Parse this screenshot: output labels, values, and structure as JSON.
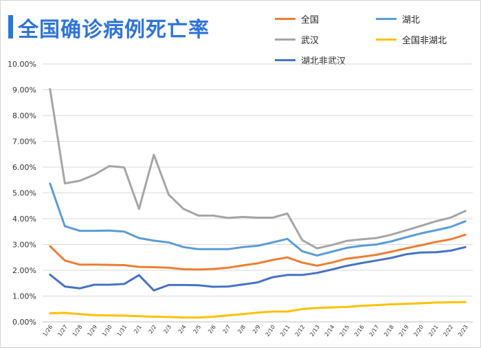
{
  "title": "全国确诊病例死亡率",
  "colors": {
    "accent": "#2e74d9"
  },
  "chart_data": {
    "type": "line",
    "title": "全国确诊病例死亡率",
    "xlabel": "",
    "ylabel": "",
    "ylim": [
      0,
      10
    ],
    "yticks": [
      "0.00%",
      "1.00%",
      "2.00%",
      "3.00%",
      "4.00%",
      "5.00%",
      "6.00%",
      "7.00%",
      "8.00%",
      "9.00%",
      "10.00%"
    ],
    "grid": true,
    "legend_position": "top-right",
    "categories": [
      "1/26",
      "1/27",
      "1/28",
      "1/29",
      "1/30",
      "1/31",
      "2/1",
      "2/2",
      "2/3",
      "2/4",
      "2/5",
      "2/6",
      "2/7",
      "2/8",
      "2/9",
      "2/10",
      "2/11",
      "2/12",
      "2/13",
      "2/14",
      "2/15",
      "2/16",
      "2/17",
      "2/18",
      "2/19",
      "2/20",
      "2/21",
      "2/22",
      "2/23"
    ],
    "series": [
      {
        "name": "全国",
        "color": "#ed7d31",
        "values": [
          2.93,
          2.38,
          2.22,
          2.22,
          2.21,
          2.2,
          2.13,
          2.12,
          2.1,
          2.04,
          2.03,
          2.05,
          2.1,
          2.19,
          2.27,
          2.4,
          2.5,
          2.3,
          2.18,
          2.3,
          2.45,
          2.52,
          2.6,
          2.72,
          2.85,
          2.97,
          3.1,
          3.2,
          3.38
        ]
      },
      {
        "name": "湖北",
        "color": "#5b9bd5",
        "values": [
          5.36,
          3.71,
          3.53,
          3.53,
          3.54,
          3.5,
          3.25,
          3.15,
          3.08,
          2.9,
          2.82,
          2.82,
          2.82,
          2.9,
          2.95,
          3.08,
          3.22,
          2.74,
          2.57,
          2.72,
          2.87,
          2.95,
          3.0,
          3.12,
          3.28,
          3.43,
          3.55,
          3.68,
          3.9
        ]
      },
      {
        "name": "武汉",
        "color": "#a5a5a5",
        "values": [
          9.03,
          5.37,
          5.47,
          5.71,
          6.04,
          5.99,
          4.38,
          6.48,
          4.93,
          4.38,
          4.12,
          4.12,
          4.03,
          4.07,
          4.04,
          4.04,
          4.2,
          3.17,
          2.85,
          2.98,
          3.14,
          3.2,
          3.25,
          3.38,
          3.55,
          3.72,
          3.9,
          4.04,
          4.3
        ]
      },
      {
        "name": "全国非湖北",
        "color": "#ffc000",
        "values": [
          0.33,
          0.35,
          0.3,
          0.26,
          0.25,
          0.24,
          0.22,
          0.2,
          0.19,
          0.17,
          0.17,
          0.2,
          0.25,
          0.3,
          0.36,
          0.4,
          0.4,
          0.5,
          0.54,
          0.56,
          0.58,
          0.62,
          0.65,
          0.68,
          0.7,
          0.72,
          0.75,
          0.76,
          0.77
        ]
      },
      {
        "name": "湖北非武汉",
        "color": "#4472c4",
        "values": [
          1.83,
          1.37,
          1.3,
          1.44,
          1.44,
          1.47,
          1.81,
          1.22,
          1.43,
          1.43,
          1.42,
          1.36,
          1.37,
          1.45,
          1.53,
          1.73,
          1.82,
          1.82,
          1.9,
          2.03,
          2.17,
          2.28,
          2.38,
          2.48,
          2.62,
          2.69,
          2.7,
          2.76,
          2.9
        ]
      }
    ]
  }
}
